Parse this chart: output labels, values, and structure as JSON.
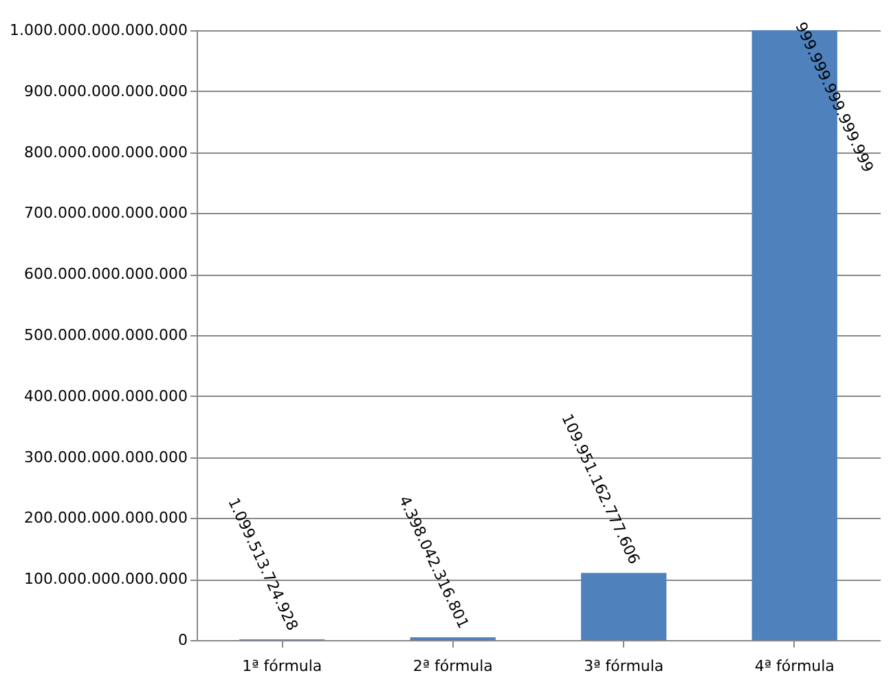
{
  "chart_data": {
    "type": "bar",
    "categories": [
      "1ª fórmula",
      "2ª fórmula",
      "3ª fórmula",
      "4ª fórmula"
    ],
    "values": [
      1099513724928,
      4398042316801,
      109951162777606,
      999999999999999
    ],
    "color": "#4f81bd",
    "ylim": [
      0,
      1000000000000000
    ],
    "yticks": [
      0,
      {
        "value": 100000000000000,
        "label": "100.000.000.000.000"
      },
      {
        "value": 200000000000000,
        "label": "200.000.000.000.000"
      },
      {
        "value": 300000000000000,
        "label": "300.000.000.000.000"
      },
      {
        "value": 400000000000000,
        "label": "400.000.000.000.000"
      },
      {
        "value": 500000000000000,
        "label": "500.000.000.000.000"
      },
      {
        "value": 600000000000000,
        "label": "600.000.000.000.000"
      },
      {
        "value": 700000000000000,
        "label": "700.000.000.000.000"
      },
      {
        "value": 800000000000000,
        "label": "800.000.000.000.000"
      },
      {
        "value": 900000000000000,
        "label": "900.000.000.000.000"
      },
      {
        "value": 1000000000000000,
        "label": "1.000.000.000.000.000"
      }
    ],
    "grid": "y",
    "value_labels": [
      "1.099.513.724.928",
      "4.398.042.316.801",
      "109.951.162.777.606",
      "999.999.999.999.999"
    ]
  }
}
